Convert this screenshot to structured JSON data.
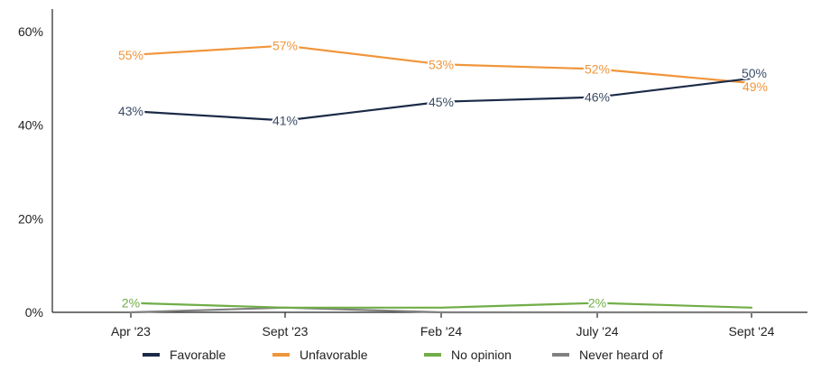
{
  "chart_data": {
    "type": "line",
    "title": "",
    "xlabel": "",
    "ylabel": "",
    "categories": [
      "Apr '23",
      "Sept '23",
      "Feb '24",
      "July '24",
      "Sept '24"
    ],
    "ylim": [
      0,
      65
    ],
    "yticks": [
      0,
      20,
      40,
      60
    ],
    "ytick_labels": [
      "0%",
      "20%",
      "40%",
      "60%"
    ],
    "grid": false,
    "legend_position": "bottom",
    "series": [
      {
        "name": "Favorable",
        "color": "#1b2a47",
        "values": [
          43,
          41,
          45,
          46,
          50
        ],
        "labels": [
          "43%",
          "41%",
          "45%",
          "46%",
          "50%"
        ],
        "labeled": [
          true,
          true,
          true,
          true,
          true
        ]
      },
      {
        "name": "Unfavorable",
        "color": "#f0953a",
        "values": [
          55,
          57,
          53,
          52,
          49
        ],
        "labels": [
          "55%",
          "57%",
          "53%",
          "52%",
          "49%"
        ],
        "labeled": [
          true,
          true,
          true,
          true,
          true
        ]
      },
      {
        "name": "No opinion",
        "color": "#70ad47",
        "values": [
          2,
          1,
          1,
          2,
          1
        ],
        "labels": [
          "2%",
          "",
          "",
          "2%",
          ""
        ],
        "labeled": [
          true,
          false,
          false,
          true,
          false
        ]
      },
      {
        "name": "Never heard of",
        "color": "#808080",
        "values": [
          0,
          1,
          0,
          0,
          0
        ],
        "labels": [
          "",
          "",
          "",
          "",
          ""
        ],
        "labeled": [
          false,
          false,
          false,
          false,
          false
        ]
      }
    ]
  }
}
